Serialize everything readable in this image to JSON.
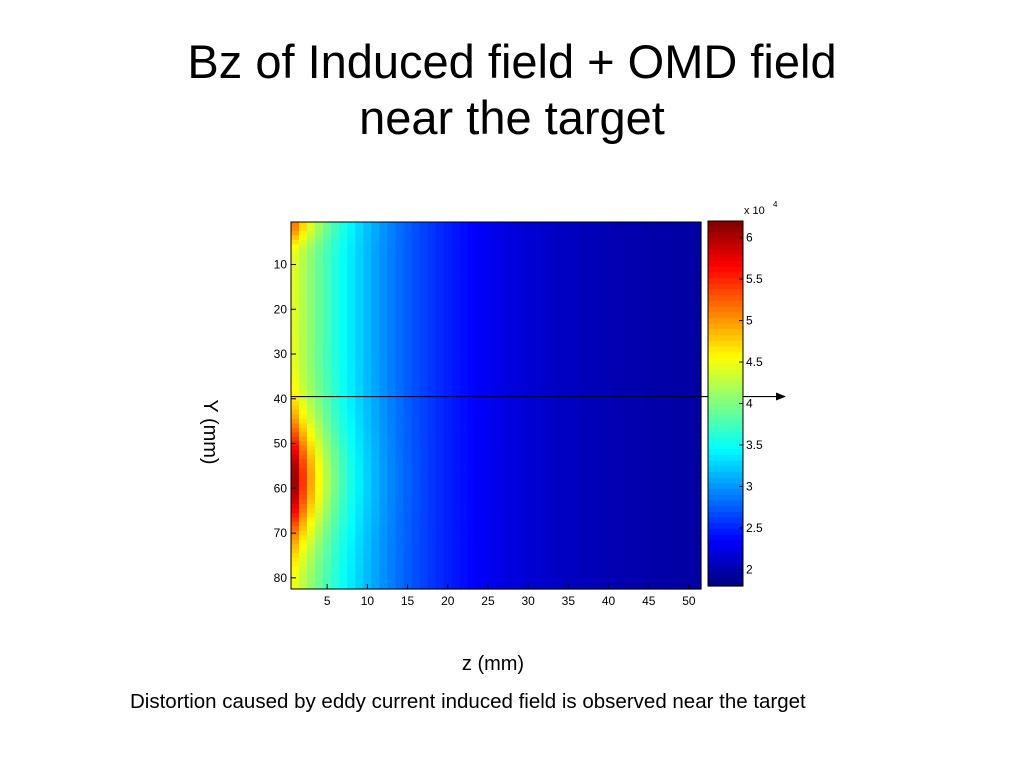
{
  "slide": {
    "title_line1": "Bz of Induced field + OMD field",
    "title_line2": "near the target",
    "caption": "Distortion caused by eddy current induced field is observed near the target"
  },
  "chart_data": {
    "type": "heatmap",
    "title": "",
    "xlabel": "z (mm)",
    "ylabel": "Y (mm)",
    "xlim": [
      0.5,
      51.5
    ],
    "ylim": [
      0.5,
      82.5
    ],
    "y_reversed": true,
    "x_ticks": [
      5,
      10,
      15,
      20,
      25,
      30,
      35,
      40,
      45,
      50
    ],
    "y_ticks": [
      10,
      20,
      30,
      40,
      50,
      60,
      70,
      80
    ],
    "colormap": "jet",
    "clim": [
      18000,
      62000
    ],
    "colorbar": {
      "ticks": [
        2,
        2.5,
        3,
        3.5,
        4,
        4.5,
        5,
        5.5,
        6
      ],
      "multiplier": "x 10",
      "exponent": "4"
    },
    "grid": false,
    "reference_line": {
      "y": 39.5,
      "arrow": "right"
    },
    "field_model": {
      "nx": 51,
      "ny": 82,
      "min_value": 19000,
      "max_value": 60500,
      "peak_z": 1,
      "peak_y": 58
    }
  }
}
